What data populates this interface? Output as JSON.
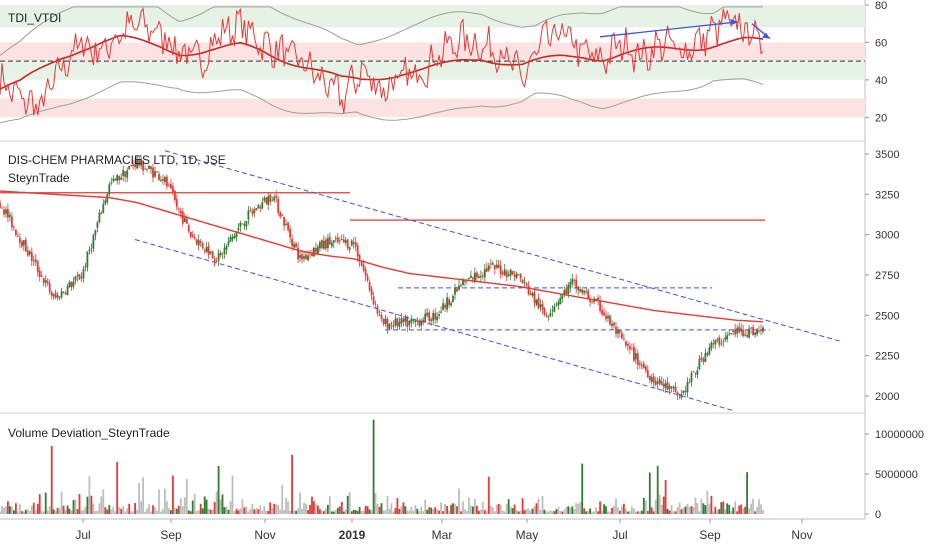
{
  "x_axis": {
    "labels": [
      "Jul",
      "Sep",
      "Nov",
      "2019",
      "Mar",
      "May",
      "Jul",
      "Sep",
      "Nov"
    ],
    "bold_label": "2019"
  },
  "panels": {
    "tdi": {
      "title": "TDI_VTDI",
      "ticks": [
        "80",
        "60",
        "40",
        "20"
      ],
      "tick_values": [
        80,
        60,
        40,
        20
      ]
    },
    "price": {
      "title": "DIS-CHEM PHARMACIES LTD, 1D, JSE",
      "subtitle": "SteynTrade",
      "ticks": [
        "3500",
        "3250",
        "3000",
        "2750",
        "2500",
        "2250",
        "2000"
      ],
      "tick_values": [
        3500,
        3250,
        3000,
        2750,
        2500,
        2250,
        2000
      ]
    },
    "volume": {
      "title": "Volume Deviation_SteynTrade",
      "ticks": [
        "10000000",
        "5000000",
        "0"
      ],
      "tick_values": [
        10000000,
        5000000,
        0
      ]
    }
  },
  "colors": {
    "up": "#2e7d32",
    "down": "#e53935",
    "ma": "#e53935",
    "channel": "#3f51e0",
    "band": "#9e9e9e",
    "green_zone": "#e6f2e6",
    "red_zone": "#fbe3e3"
  },
  "chart_data": [
    {
      "type": "line",
      "panel": "TDI_VTDI",
      "x_range": [
        "2018-05",
        "2019-11"
      ],
      "ylim": [
        10,
        80
      ],
      "zones": [
        {
          "from": 68,
          "to": 80,
          "color": "green"
        },
        {
          "from": 50,
          "to": 60,
          "color": "red"
        },
        {
          "from": 40,
          "to": 50,
          "color": "green"
        },
        {
          "from": 20,
          "to": 30,
          "color": "red"
        }
      ],
      "reference_line": 50,
      "series": [
        {
          "values_approx": [
            40,
            30,
            25,
            45,
            60,
            55,
            65,
            70,
            65,
            55,
            50,
            65,
            70,
            60,
            55,
            50,
            40,
            30,
            45,
            35,
            40,
            45,
            55,
            62,
            58,
            55,
            40,
            60,
            65,
            55,
            50,
            60,
            52,
            60,
            55,
            62,
            70,
            68,
            60
          ]
        },
        {
          "values_approx": [
            35,
            38,
            45,
            52,
            57,
            60,
            62,
            60,
            58,
            55,
            55,
            56,
            58,
            56,
            52,
            48,
            44,
            40,
            40,
            42,
            44,
            45,
            47,
            50,
            52,
            50,
            48,
            50,
            52,
            53,
            52,
            54,
            55,
            56,
            57,
            58,
            60,
            61,
            60
          ]
        }
      ]
    },
    {
      "type": "candlestick",
      "panel": "DIS-CHEM PHARMACIES LTD, 1D, JSE",
      "x_range": [
        "2018-05",
        "2019-11"
      ],
      "ylim": [
        1880,
        3540
      ],
      "close_approx": [
        3200,
        2900,
        2600,
        2750,
        3300,
        3450,
        3350,
        3000,
        2850,
        3100,
        3250,
        2850,
        2950,
        2950,
        2450,
        2450,
        2500,
        2700,
        2800,
        2750,
        2500,
        2700,
        2550,
        2300,
        2100,
        2000,
        2300,
        2400,
        2400
      ],
      "moving_average_approx": [
        3270,
        3260,
        3250,
        3240,
        3230,
        3200,
        3150,
        3100,
        3050,
        3000,
        2950,
        2900,
        2870,
        2850,
        2800,
        2760,
        2740,
        2720,
        2700,
        2680,
        2650,
        2620,
        2590,
        2560,
        2530,
        2510,
        2490,
        2470,
        2460
      ],
      "horizontal_lines": [
        3260,
        3090,
        2670,
        2410
      ],
      "channel": {
        "upper": [
          3520,
          2400
        ],
        "lower": [
          3000,
          1910
        ]
      }
    },
    {
      "type": "bar",
      "panel": "Volume Deviation_SteynTrade",
      "x_range": [
        "2018-05",
        "2019-11"
      ],
      "ylim": [
        0,
        12000000
      ],
      "notable_spikes_approx": [
        {
          "month": "2018-06",
          "value": 8500000
        },
        {
          "month": "2018-07",
          "value": 6500000
        },
        {
          "month": "2018-09",
          "value": 4800000
        },
        {
          "month": "2018-10",
          "value": 6000000
        },
        {
          "month": "2018-11",
          "value": 7400000
        },
        {
          "month": "2019-01",
          "value": 11800000
        },
        {
          "month": "2019-06",
          "value": 6300000
        },
        {
          "month": "2019-08",
          "value": 6000000
        }
      ]
    }
  ]
}
